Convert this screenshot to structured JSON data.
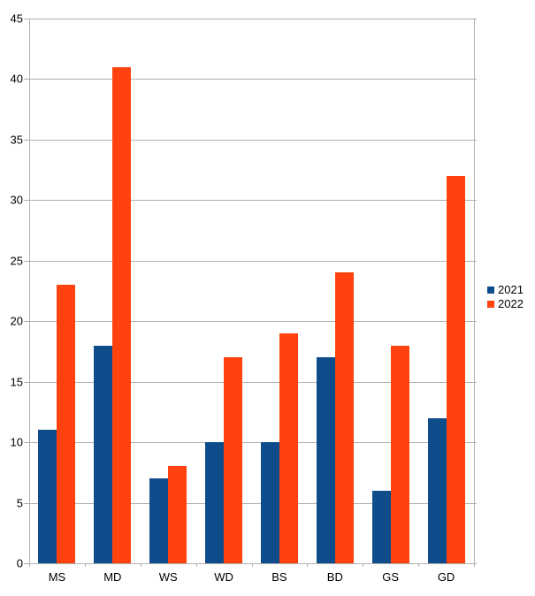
{
  "chart_data": {
    "type": "bar",
    "title": "",
    "xlabel": "",
    "ylabel": "",
    "categories": [
      "MS",
      "MD",
      "WS",
      "WD",
      "BS",
      "BD",
      "GS",
      "GD"
    ],
    "series": [
      {
        "name": "2021",
        "color": "#0f4c8c",
        "values": [
          11,
          18,
          7,
          10,
          10,
          17,
          6,
          12
        ]
      },
      {
        "name": "2022",
        "color": "#ff420e",
        "values": [
          23,
          41,
          8,
          17,
          19,
          24,
          18,
          32
        ]
      }
    ],
    "ylim": [
      0,
      45
    ],
    "ytick_step": 5,
    "ytick_labels": [
      "0",
      "5",
      "10",
      "15",
      "20",
      "25",
      "30",
      "35",
      "40",
      "45"
    ],
    "grid": true,
    "gridline_color": "#b0b0b0",
    "background_color": "#ffffff",
    "legend_position": "right"
  }
}
